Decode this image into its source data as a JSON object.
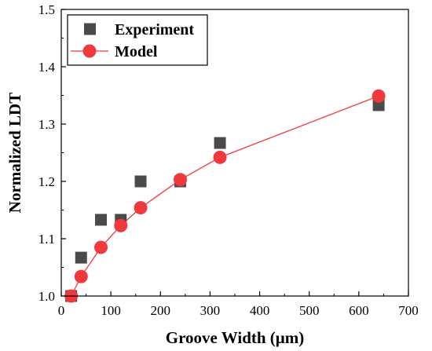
{
  "chart_data": {
    "type": "scatter",
    "xlabel": "Groove Width (μm)",
    "ylabel": "Normalized LDT",
    "xlim": [
      0,
      700
    ],
    "ylim": [
      1.0,
      1.5
    ],
    "xticks": [
      0,
      100,
      200,
      300,
      400,
      500,
      600,
      700
    ],
    "yticks": [
      1.0,
      1.1,
      1.2,
      1.3,
      1.4,
      1.5
    ],
    "xtick_labels": [
      "0",
      "100",
      "200",
      "300",
      "400",
      "500",
      "600",
      "700"
    ],
    "ytick_labels": [
      "1.0",
      "1.1",
      "1.2",
      "1.3",
      "1.4",
      "1.5"
    ],
    "legend_position": "top-left",
    "grid": false,
    "series": [
      {
        "name": "Experiment",
        "marker": "square",
        "color": "#4a4a4a",
        "line": false,
        "x": [
          20,
          40,
          80,
          120,
          160,
          240,
          320,
          640
        ],
        "y": [
          1.0,
          1.067,
          1.133,
          1.133,
          1.2,
          1.2,
          1.267,
          1.333
        ]
      },
      {
        "name": "Model",
        "marker": "circle",
        "color": "#f0393c",
        "line": true,
        "x": [
          20,
          40,
          80,
          120,
          160,
          240,
          320,
          640
        ],
        "y": [
          1.0,
          1.034,
          1.085,
          1.123,
          1.154,
          1.203,
          1.242,
          1.349
        ]
      }
    ]
  }
}
